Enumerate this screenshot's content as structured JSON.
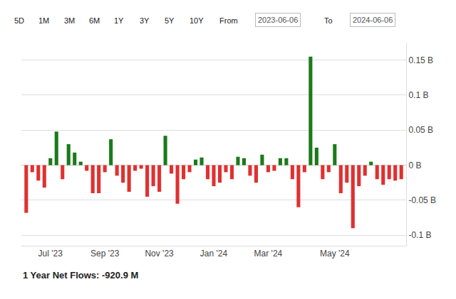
{
  "chart_data": {
    "type": "bar",
    "subtitle": "1 Year Net Flows: -920.9 M",
    "annotations": [
      "5D",
      "1M",
      "3M",
      "6M",
      "1Y",
      "3Y",
      "5Y",
      "10Y",
      "From",
      "2023-06-06",
      "To",
      "2024-06-06"
    ],
    "categories": [
      null,
      null,
      null,
      null,
      "Jul '23",
      null,
      null,
      null,
      null,
      null,
      null,
      null,
      null,
      "Sep '23",
      null,
      null,
      null,
      null,
      null,
      null,
      null,
      null,
      "Nov '23",
      null,
      null,
      null,
      null,
      null,
      null,
      null,
      null,
      "Jan '24",
      null,
      null,
      null,
      null,
      null,
      null,
      null,
      null,
      "Mar '24",
      null,
      null,
      null,
      null,
      null,
      null,
      null,
      null,
      null,
      null,
      "May '24",
      null,
      null,
      null,
      null,
      null,
      null,
      null,
      null,
      null,
      null,
      null
    ],
    "values": [
      -0.068,
      -0.01,
      -0.022,
      -0.032,
      0.01,
      0.048,
      -0.02,
      0.03,
      0.018,
      0.005,
      -0.008,
      -0.04,
      -0.04,
      -0.01,
      0.037,
      -0.015,
      -0.025,
      -0.038,
      -0.008,
      -0.005,
      -0.045,
      -0.03,
      -0.038,
      0.042,
      -0.012,
      -0.055,
      -0.02,
      -0.01,
      0.008,
      0.011,
      -0.02,
      -0.03,
      -0.025,
      -0.01,
      -0.02,
      0.012,
      0.01,
      -0.015,
      -0.025,
      0.015,
      -0.01,
      -0.008,
      0.01,
      0.01,
      -0.02,
      -0.06,
      -0.01,
      0.155,
      0.025,
      -0.02,
      -0.01,
      0.03,
      -0.04,
      -0.025,
      -0.09,
      -0.03,
      -0.015,
      0.005,
      -0.02,
      -0.028,
      -0.02,
      -0.022,
      -0.02
    ],
    "colors": [
      "#e03030",
      "#e03030",
      "#e03030",
      "#e03030",
      "#1a7a1a",
      "#1a7a1a",
      "#e03030",
      "#1a7a1a",
      "#1a7a1a",
      "#1a7a1a",
      "#e03030",
      "#e03030",
      "#e03030",
      "#e03030",
      "#1a7a1a",
      "#e03030",
      "#e03030",
      "#e03030",
      "#e03030",
      "#e03030",
      "#e03030",
      "#e03030",
      "#e03030",
      "#1a7a1a",
      "#e03030",
      "#e03030",
      "#e03030",
      "#e03030",
      "#1a7a1a",
      "#1a7a1a",
      "#e03030",
      "#e03030",
      "#e03030",
      "#e03030",
      "#e03030",
      "#1a7a1a",
      "#1a7a1a",
      "#e03030",
      "#e03030",
      "#1a7a1a",
      "#e03030",
      "#e03030",
      "#1a7a1a",
      "#1a7a1a",
      "#e03030",
      "#e03030",
      "#e03030",
      "#1a7a1a",
      "#1a7a1a",
      "#e03030",
      "#e03030",
      "#1a7a1a",
      "#e03030",
      "#e03030",
      "#e03030",
      "#e03030",
      "#e03030",
      "#1a7a1a",
      "#e03030",
      "#e03030",
      "#e03030",
      "#e03030",
      "#e03030"
    ],
    "ylim": [
      -0.115,
      0.175
    ],
    "yticks": [
      {
        "value": -0.1,
        "label": "-0.1 B"
      },
      {
        "value": -0.05,
        "label": "-0.05 B"
      },
      {
        "value": 0,
        "label": "0 B"
      },
      {
        "value": 0.05,
        "label": "0.05 B"
      },
      {
        "value": 0.1,
        "label": "0.1 B"
      },
      {
        "value": 0.15,
        "label": "0.15 B"
      }
    ],
    "grid": true
  }
}
